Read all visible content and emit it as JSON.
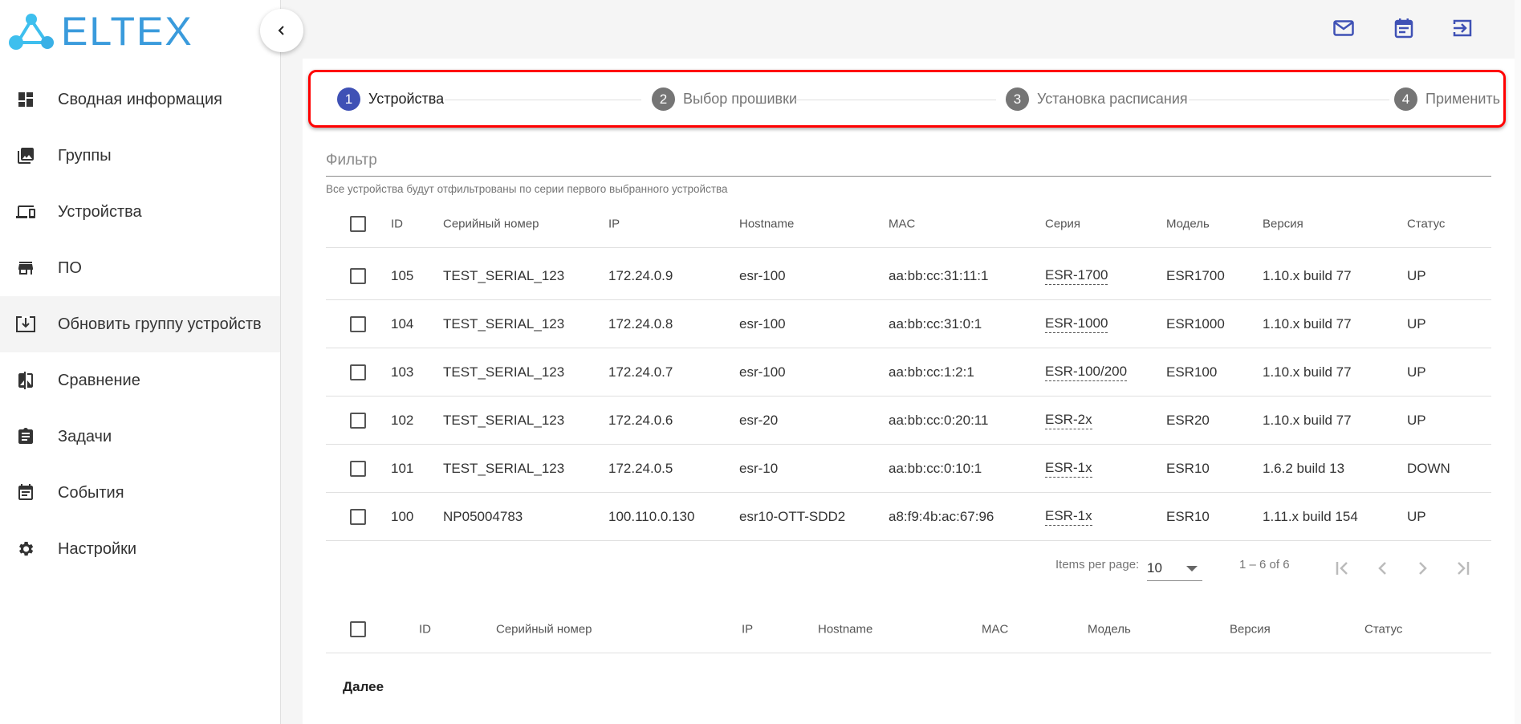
{
  "brand": {
    "name": "ELTEX",
    "colors": {
      "logo": "#3a9bdc",
      "accent": "#3f51b5",
      "stepper_highlight": "#ff0000"
    }
  },
  "sidebar": {
    "items": [
      {
        "label": "Сводная информация",
        "icon": "dashboard-icon"
      },
      {
        "label": "Группы",
        "icon": "photo-library-icon"
      },
      {
        "label": "Устройства",
        "icon": "devices-icon"
      },
      {
        "label": "ПО",
        "icon": "store-icon"
      },
      {
        "label": "Обновить группу устройств",
        "icon": "download-box-icon",
        "active": true
      },
      {
        "label": "Сравнение",
        "icon": "compare-icon"
      },
      {
        "label": "Задачи",
        "icon": "assignment-icon"
      },
      {
        "label": "События",
        "icon": "event-note-icon"
      },
      {
        "label": "Настройки",
        "icon": "gear-icon"
      }
    ]
  },
  "topbar": {
    "icons": [
      "mail-icon",
      "calendar-icon",
      "logout-icon"
    ]
  },
  "stepper": {
    "steps": [
      {
        "num": "1",
        "label": "Устройства",
        "active": true
      },
      {
        "num": "2",
        "label": "Выбор прошивки"
      },
      {
        "num": "3",
        "label": "Установка расписания"
      },
      {
        "num": "4",
        "label": "Применить"
      }
    ]
  },
  "filter": {
    "placeholder": "Фильтр",
    "hint": "Все устройства будут отфильтрованы по серии первого выбранного устройства"
  },
  "table": {
    "headers": [
      "ID",
      "Серийный номер",
      "IP",
      "Hostname",
      "MAC",
      "Серия",
      "Модель",
      "Версия",
      "Статус"
    ],
    "rows": [
      [
        "105",
        "TEST_SERIAL_123",
        "172.24.0.9",
        "esr-100",
        "aa:bb:cc:31:11:1",
        "ESR-1700",
        "ESR1700",
        "1.10.x build 77",
        "UP"
      ],
      [
        "104",
        "TEST_SERIAL_123",
        "172.24.0.8",
        "esr-100",
        "aa:bb:cc:31:0:1",
        "ESR-1000",
        "ESR1000",
        "1.10.x build 77",
        "UP"
      ],
      [
        "103",
        "TEST_SERIAL_123",
        "172.24.0.7",
        "esr-100",
        "aa:bb:cc:1:2:1",
        "ESR-100/200",
        "ESR100",
        "1.10.x build 77",
        "UP"
      ],
      [
        "102",
        "TEST_SERIAL_123",
        "172.24.0.6",
        "esr-20",
        "aa:bb:cc:0:20:11",
        "ESR-2x",
        "ESR20",
        "1.10.x build 77",
        "UP"
      ],
      [
        "101",
        "TEST_SERIAL_123",
        "172.24.0.5",
        "esr-10",
        "aa:bb:cc:0:10:1",
        "ESR-1x",
        "ESR10",
        "1.6.2 build 13",
        "DOWN"
      ],
      [
        "100",
        "NP05004783",
        "100.110.0.130",
        "esr10-OTT-SDD2",
        "a8:f9:4b:ac:67:96",
        "ESR-1x",
        "ESR10",
        "1.11.x build 154",
        "UP"
      ]
    ]
  },
  "paginator": {
    "items_per_page_label": "Items per page:",
    "page_size": "10",
    "range": "1 – 6 of 6"
  },
  "selected_table": {
    "headers": [
      "ID",
      "Серийный номер",
      "IP",
      "Hostname",
      "MAC",
      "Модель",
      "Версия",
      "Статус"
    ]
  },
  "actions": {
    "next": "Далее"
  }
}
